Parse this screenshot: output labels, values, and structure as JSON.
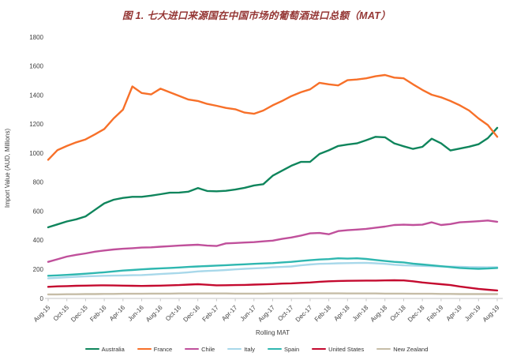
{
  "title": "图 1. 七大进口来源国在中国市场的葡萄酒进口总额（MAT）",
  "chart_data": {
    "type": "line",
    "xlabel": "Rolling MAT",
    "ylabel": "Import Value (AUD, Millions)",
    "ylim": [
      0,
      1800
    ],
    "ytick_step": 200,
    "grid": false,
    "legend_position": "bottom",
    "x_labels": [
      "Aug-15",
      "Oct-15",
      "Dec-15",
      "Feb-16",
      "Apr-16",
      "Jun-16",
      "Aug-16",
      "Oct-16",
      "Dec-16",
      "Feb-17",
      "Apr-17",
      "Jun-17",
      "Aug-17",
      "Oct-17",
      "Dec-17",
      "Feb-18",
      "Apr-18",
      "Jun-18",
      "Aug-18",
      "Oct-18",
      "Dec-18",
      "Feb-19",
      "Apr-19",
      "Jun-19",
      "Aug-19"
    ],
    "x_label_every_nth_point": 2,
    "series": [
      {
        "name": "Australia",
        "color": "#0f855c",
        "values": [
          490,
          510,
          530,
          545,
          565,
          610,
          655,
          680,
          692,
          700,
          700,
          708,
          718,
          728,
          729,
          735,
          760,
          740,
          738,
          741,
          750,
          762,
          778,
          787,
          845,
          880,
          914,
          940,
          941,
          995,
          1020,
          1050,
          1060,
          1068,
          1090,
          1113,
          1110,
          1068,
          1048,
          1030,
          1044,
          1100,
          1068,
          1019,
          1032,
          1045,
          1062,
          1104,
          1175
        ]
      },
      {
        "name": "France",
        "color": "#f77029",
        "values": [
          955,
          1022,
          1050,
          1075,
          1095,
          1130,
          1167,
          1240,
          1300,
          1460,
          1415,
          1405,
          1445,
          1420,
          1395,
          1370,
          1360,
          1340,
          1327,
          1312,
          1303,
          1280,
          1272,
          1294,
          1330,
          1360,
          1394,
          1420,
          1440,
          1485,
          1475,
          1467,
          1503,
          1508,
          1516,
          1530,
          1539,
          1521,
          1516,
          1475,
          1436,
          1403,
          1385,
          1360,
          1330,
          1294,
          1240,
          1194,
          1113
        ]
      },
      {
        "name": "Chile",
        "color": "#c0509b",
        "values": [
          252,
          270,
          288,
          300,
          310,
          322,
          330,
          337,
          342,
          346,
          350,
          352,
          356,
          360,
          364,
          367,
          370,
          364,
          361,
          379,
          382,
          385,
          388,
          393,
          398,
          410,
          420,
          433,
          448,
          451,
          442,
          464,
          470,
          474,
          479,
          487,
          495,
          506,
          508,
          506,
          508,
          524,
          506,
          512,
          524,
          528,
          532,
          537,
          528
        ]
      },
      {
        "name": "Italy",
        "color": "#a8d8ea",
        "values": [
          138,
          142,
          146,
          149,
          152,
          154,
          156,
          157,
          158,
          160,
          161,
          164,
          168,
          172,
          175,
          180,
          186,
          189,
          192,
          196,
          200,
          204,
          207,
          210,
          214,
          217,
          220,
          228,
          234,
          238,
          240,
          242,
          243,
          244,
          245,
          242,
          238,
          232,
          228,
          226,
          224,
          222,
          220,
          219,
          218,
          216,
          215,
          214,
          214
        ]
      },
      {
        "name": "Spain",
        "color": "#2fb7b0",
        "values": [
          156,
          159,
          162,
          166,
          170,
          175,
          180,
          186,
          192,
          196,
          200,
          204,
          207,
          210,
          213,
          217,
          220,
          223,
          226,
          229,
          232,
          235,
          238,
          241,
          243,
          248,
          252,
          258,
          263,
          268,
          271,
          276,
          274,
          276,
          272,
          265,
          258,
          252,
          248,
          240,
          234,
          228,
          222,
          216,
          210,
          206,
          204,
          206,
          210
        ]
      },
      {
        "name": "United States",
        "color": "#c40a2f",
        "values": [
          80,
          83,
          85,
          87,
          88,
          89,
          90,
          89,
          88,
          87,
          86,
          87,
          88,
          90,
          92,
          95,
          98,
          94,
          90,
          91,
          92,
          93,
          95,
          97,
          99,
          102,
          104,
          107,
          110,
          115,
          118,
          120,
          121,
          122,
          123,
          123,
          124,
          125,
          124,
          118,
          110,
          104,
          98,
          92,
          82,
          74,
          66,
          60,
          55
        ]
      },
      {
        "name": "New Zealand",
        "color": "#c6bda7",
        "values": [
          28,
          28,
          29,
          29,
          30,
          30,
          31,
          31,
          32,
          32,
          32,
          33,
          33,
          33,
          34,
          34,
          34,
          34,
          34,
          34,
          33,
          33,
          33,
          33,
          34,
          34,
          34,
          35,
          35,
          35,
          35,
          35,
          34,
          34,
          34,
          34,
          33,
          33,
          33,
          32,
          32,
          32,
          31,
          31,
          30,
          30,
          30,
          30,
          30
        ]
      }
    ]
  }
}
